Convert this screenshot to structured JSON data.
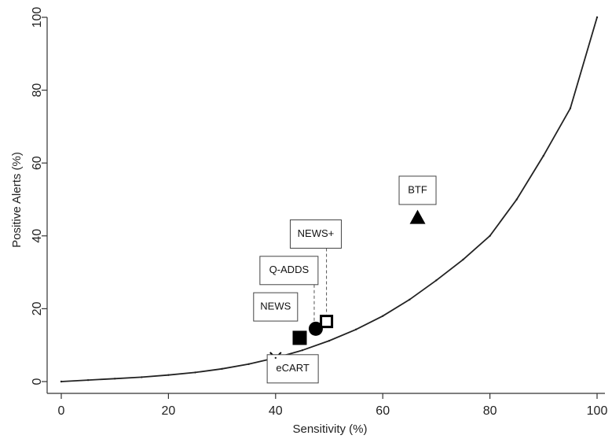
{
  "chart_data": {
    "type": "scatter",
    "title": "",
    "xlabel": "Sensitivity (%)",
    "ylabel": "Positive Alerts (%)",
    "xlim": [
      0,
      100
    ],
    "ylim": [
      0,
      100
    ],
    "xticks": [
      0,
      20,
      40,
      60,
      80,
      100
    ],
    "yticks": [
      0,
      20,
      40,
      60,
      80,
      100
    ],
    "grid": false,
    "curve": {
      "x": [
        0,
        5,
        10,
        15,
        20,
        25,
        30,
        35,
        40,
        45,
        50,
        55,
        60,
        65,
        70,
        75,
        80,
        85,
        90,
        95,
        100
      ],
      "y": [
        0,
        0.4,
        0.8,
        1.2,
        1.8,
        2.5,
        3.5,
        4.8,
        6.5,
        8.6,
        11.2,
        14.3,
        18.0,
        22.5,
        27.8,
        33.5,
        40.0,
        50.0,
        62.0,
        75.0,
        100.0
      ]
    },
    "points": [
      {
        "label": "eCART",
        "x": 40,
        "y": 6.5,
        "marker": "x",
        "label_x": 43.2,
        "label_y": 3.5
      },
      {
        "label": "NEWS",
        "x": 44.5,
        "y": 12,
        "marker": "filled-square",
        "label_x": 40,
        "label_y": 20.5
      },
      {
        "label": "Q-ADDS",
        "x": 47.5,
        "y": 14.5,
        "marker": "filled-circle",
        "label_x": 42.5,
        "label_y": 30.5
      },
      {
        "label": "NEWS+",
        "x": 49.5,
        "y": 16.5,
        "marker": "open-square",
        "label_x": 47.5,
        "label_y": 40.5
      },
      {
        "label": "BTF",
        "x": 66.5,
        "y": 45,
        "marker": "filled-triangle",
        "label_x": 66.5,
        "label_y": 52.5
      }
    ]
  }
}
